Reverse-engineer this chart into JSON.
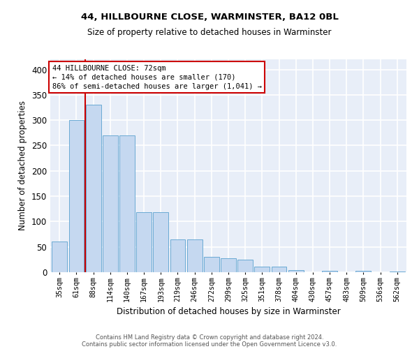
{
  "title1": "44, HILLBOURNE CLOSE, WARMINSTER, BA12 0BL",
  "title2": "Size of property relative to detached houses in Warminster",
  "xlabel": "Distribution of detached houses by size in Warminster",
  "ylabel": "Number of detached properties",
  "categories": [
    "35sqm",
    "61sqm",
    "88sqm",
    "114sqm",
    "140sqm",
    "167sqm",
    "193sqm",
    "219sqm",
    "246sqm",
    "272sqm",
    "299sqm",
    "325sqm",
    "351sqm",
    "378sqm",
    "404sqm",
    "430sqm",
    "457sqm",
    "483sqm",
    "509sqm",
    "536sqm",
    "562sqm"
  ],
  "values": [
    60,
    300,
    330,
    270,
    270,
    118,
    118,
    65,
    65,
    30,
    27,
    25,
    11,
    11,
    4,
    0,
    3,
    0,
    3,
    0,
    2
  ],
  "bar_color": "#c5d8f0",
  "bar_edge_color": "#6aaad4",
  "background_color": "#e8eef8",
  "grid_color": "#ffffff",
  "vline_color": "#cc0000",
  "vline_x": 1.5,
  "annotation_text_line1": "44 HILLBOURNE CLOSE: 72sqm",
  "annotation_text_line2": "← 14% of detached houses are smaller (170)",
  "annotation_text_line3": "86% of semi-detached houses are larger (1,041) →",
  "annotation_box_color": "#ffffff",
  "annotation_box_edge_color": "#cc0000",
  "ylim": [
    0,
    420
  ],
  "yticks": [
    0,
    50,
    100,
    150,
    200,
    250,
    300,
    350,
    400
  ],
  "footer1": "Contains HM Land Registry data © Crown copyright and database right 2024.",
  "footer2": "Contains public sector information licensed under the Open Government Licence v3.0."
}
